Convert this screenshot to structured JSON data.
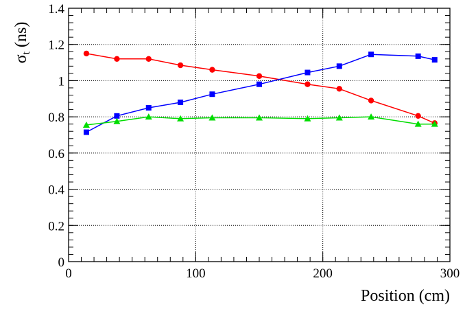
{
  "chart_data": {
    "type": "line",
    "title": "",
    "xlabel": "Position (cm)",
    "ylabel": {
      "main": "σ",
      "sub": "t",
      "unit": " (ns)"
    },
    "xlim": [
      0,
      300
    ],
    "ylim": [
      0,
      1.4
    ],
    "x_ticks": [
      "0",
      "100",
      "200",
      "300"
    ],
    "x_tick_values": [
      0,
      100,
      200,
      300
    ],
    "y_ticks": [
      "0",
      "0.2",
      "0.4",
      "0.6",
      "0.8",
      "1",
      "1.2",
      "1.4"
    ],
    "y_tick_values": [
      0,
      0.2,
      0.4,
      0.6,
      0.8,
      1.0,
      1.2,
      1.4
    ],
    "grid": true,
    "series": [
      {
        "color": "#ff0000",
        "marker": "circle",
        "x": [
          14,
          38,
          63,
          88,
          113,
          150,
          188,
          213,
          238,
          275,
          288
        ],
        "y": [
          1.15,
          1.12,
          1.12,
          1.085,
          1.06,
          1.025,
          0.98,
          0.955,
          0.89,
          0.805,
          0.765
        ]
      },
      {
        "color": "#0000ff",
        "marker": "square",
        "x": [
          14,
          38,
          63,
          88,
          113,
          150,
          188,
          213,
          238,
          275,
          288
        ],
        "y": [
          0.715,
          0.805,
          0.85,
          0.88,
          0.925,
          0.98,
          1.045,
          1.08,
          1.145,
          1.135,
          1.115
        ]
      },
      {
        "color": "#00dd00",
        "marker": "triangle",
        "x": [
          14,
          38,
          63,
          88,
          113,
          150,
          188,
          213,
          238,
          275,
          288
        ],
        "y": [
          0.755,
          0.775,
          0.8,
          0.79,
          0.795,
          0.795,
          0.79,
          0.795,
          0.8,
          0.76,
          0.76
        ]
      }
    ]
  }
}
